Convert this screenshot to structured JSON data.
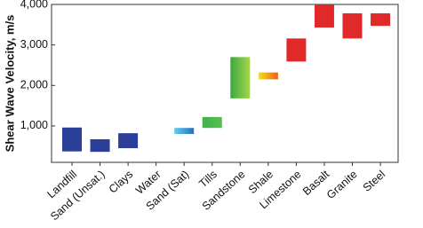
{
  "chart_data": {
    "type": "floating-bar",
    "y_label": "Shear Wave Velocity, m/s",
    "categories": [
      "Landfill",
      "Sand (Unsat.)",
      "Clays",
      "Water",
      "Sand (Sat)",
      "Tills",
      "Sandstone",
      "Shale",
      "Limestone",
      "Basalt",
      "Granite",
      "Steel"
    ],
    "low": [
      370,
      360,
      450,
      null,
      800,
      950,
      1680,
      2150,
      2590,
      3430,
      3160,
      3470
    ],
    "high": [
      960,
      670,
      820,
      null,
      950,
      1220,
      2700,
      2320,
      3160,
      4000,
      3780,
      3780
    ],
    "colors": [
      "#2b3f98",
      "#2b3f98",
      "#2b3f98",
      null,
      [
        "#5fd0f0",
        "#2a6fc0"
      ],
      [
        "#3fb24a",
        "#56c04f"
      ],
      [
        "#3aa842",
        "#a6d64a"
      ],
      [
        "#f5e21a",
        "#e8601e"
      ],
      [
        "#e02a2a",
        "#e02a2a"
      ],
      [
        "#e02a2a",
        "#e02a2a"
      ],
      [
        "#e02a2a",
        "#e02a2a"
      ],
      [
        "#e02a2a",
        "#e02a2a"
      ]
    ],
    "ylim": [
      100,
      4000
    ],
    "yticks": [
      {
        "value": 1000,
        "label": "1,000"
      },
      {
        "value": 2000,
        "label": "2,000"
      },
      {
        "value": 3000,
        "label": "3,000"
      },
      {
        "value": 4000,
        "label": "4,000"
      }
    ]
  }
}
